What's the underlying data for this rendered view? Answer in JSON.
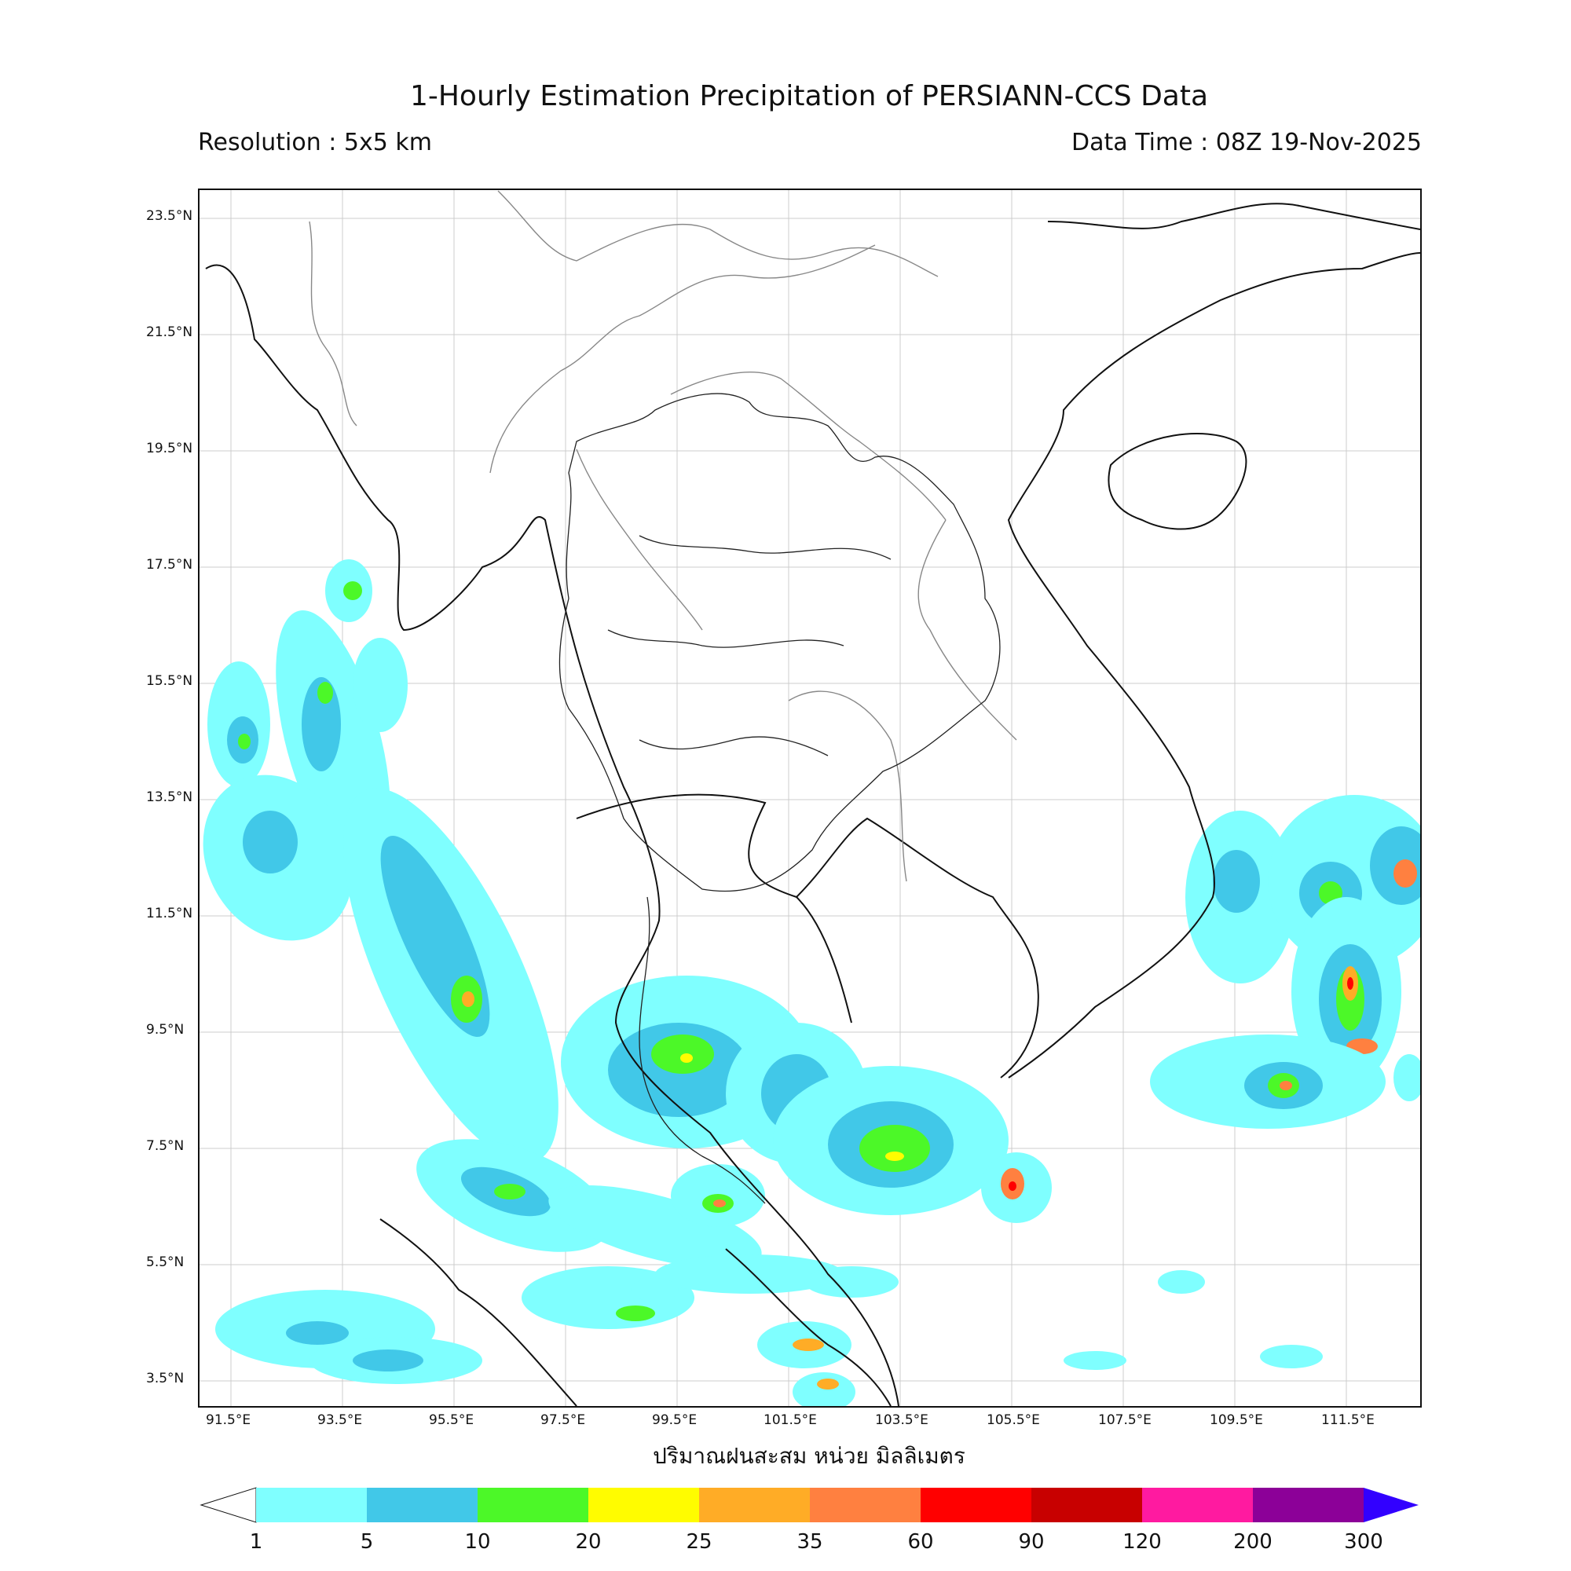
{
  "header": {
    "title": "1-Hourly Estimation Precipitation of PERSIANN-CCS Data",
    "resolution": "Resolution : 5x5 km",
    "data_time": "Data Time : 08Z 19-Nov-2025"
  },
  "axes": {
    "lat_labels": [
      "23.5°N",
      "21.5°N",
      "19.5°N",
      "17.5°N",
      "15.5°N",
      "13.5°N",
      "11.5°N",
      "9.5°N",
      "7.5°N",
      "5.5°N",
      "3.5°N"
    ],
    "lon_labels": [
      "91.5°E",
      "93.5°E",
      "95.5°E",
      "97.5°E",
      "99.5°E",
      "101.5°E",
      "103.5°E",
      "105.5°E",
      "107.5°E",
      "109.5°E",
      "111.5°E"
    ],
    "xlabel": "ปริมาณฝนสะสม หน่วย มิลลิเมตร"
  },
  "colorbar": {
    "labels": [
      "1",
      "5",
      "10",
      "20",
      "25",
      "35",
      "60",
      "90",
      "120",
      "200",
      "300"
    ],
    "colors": [
      "#7fffff",
      "#41c8e8",
      "#4cf828",
      "#fffc00",
      "#ffac26",
      "#ff8040",
      "#ff0000",
      "#c80000",
      "#ff1aa0",
      "#8c0098",
      "#3200ff"
    ]
  },
  "legend": {
    "colors": {
      "coast": "#111111",
      "border": "#888888",
      "grid": "#cccccc"
    }
  }
}
